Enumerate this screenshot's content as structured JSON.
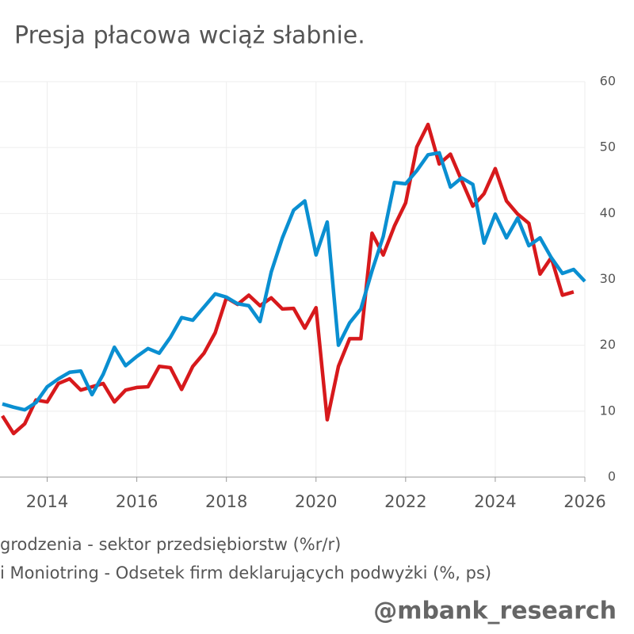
{
  "chart_data": {
    "type": "line",
    "title": "Presja płacowa wciąż słabnie.",
    "watermark": "@mbank_research",
    "x": [
      2013,
      2013.25,
      2013.5,
      2013.75,
      2014,
      2014.25,
      2014.5,
      2014.75,
      2015,
      2015.25,
      2015.5,
      2015.75,
      2016,
      2016.25,
      2016.5,
      2016.75,
      2017,
      2017.25,
      2017.5,
      2017.75,
      2018,
      2018.25,
      2018.5,
      2018.75,
      2019,
      2019.25,
      2019.5,
      2019.75,
      2020,
      2020.25,
      2020.5,
      2020.75,
      2021,
      2021.25,
      2021.5,
      2021.75,
      2022,
      2022.25,
      2022.5,
      2022.75,
      2023,
      2023.25,
      2023.5,
      2023.75,
      2024,
      2024.25,
      2024.5,
      2024.75,
      2025,
      2025.25,
      2025.5,
      2025.75,
      2026
    ],
    "series": [
      {
        "name": "grodzenia - sektor przedsiębiorstw (%r/r)",
        "color": "#d7191c",
        "values": [
          9.3,
          6.6,
          8.1,
          11.7,
          11.4,
          14.2,
          14.9,
          13.2,
          13.7,
          14.2,
          11.4,
          13.2,
          13.6,
          13.7,
          16.8,
          16.6,
          13.3,
          16.8,
          18.8,
          21.9,
          27.2,
          26.2,
          27.6,
          26.0,
          27.2,
          25.5,
          25.6,
          22.6,
          25.7,
          8.7,
          16.8,
          21.0,
          21.0,
          37.0,
          33.7,
          38.1,
          41.6,
          50.1,
          53.5,
          47.5,
          49.0,
          45.0,
          41.1,
          43.0,
          46.8,
          41.9,
          39.9,
          38.5,
          30.8,
          33.3,
          27.6,
          28.1,
          null
        ]
      },
      {
        "name": "i Moniotring - Odsetek firm deklarujących podwyżki (%, ps)",
        "color": "#0a8fd1",
        "axis": "y2",
        "values": [
          11.1,
          10.6,
          10.2,
          11.3,
          13.7,
          14.9,
          15.9,
          16.1,
          12.5,
          15.6,
          19.7,
          16.9,
          18.3,
          19.5,
          18.8,
          21.2,
          24.2,
          23.8,
          25.8,
          27.8,
          27.3,
          26.3,
          26.0,
          23.6,
          31.1,
          36.3,
          40.5,
          41.9,
          33.7,
          38.7,
          20.0,
          23.4,
          25.5,
          31.3,
          36.5,
          44.7,
          44.5,
          46.5,
          48.9,
          49.2,
          44.0,
          45.4,
          44.4,
          35.5,
          39.9,
          36.3,
          39.3,
          35.1,
          36.3,
          33.3,
          30.9,
          31.5,
          29.7
        ]
      }
    ],
    "xlim": [
      2013,
      2026
    ],
    "xticks": [
      2014,
      2016,
      2018,
      2020,
      2022,
      2024,
      2026
    ],
    "y2lim": [
      0,
      60
    ],
    "y2ticks": [
      0,
      10,
      20,
      30,
      40,
      50,
      60
    ],
    "grid": true
  }
}
